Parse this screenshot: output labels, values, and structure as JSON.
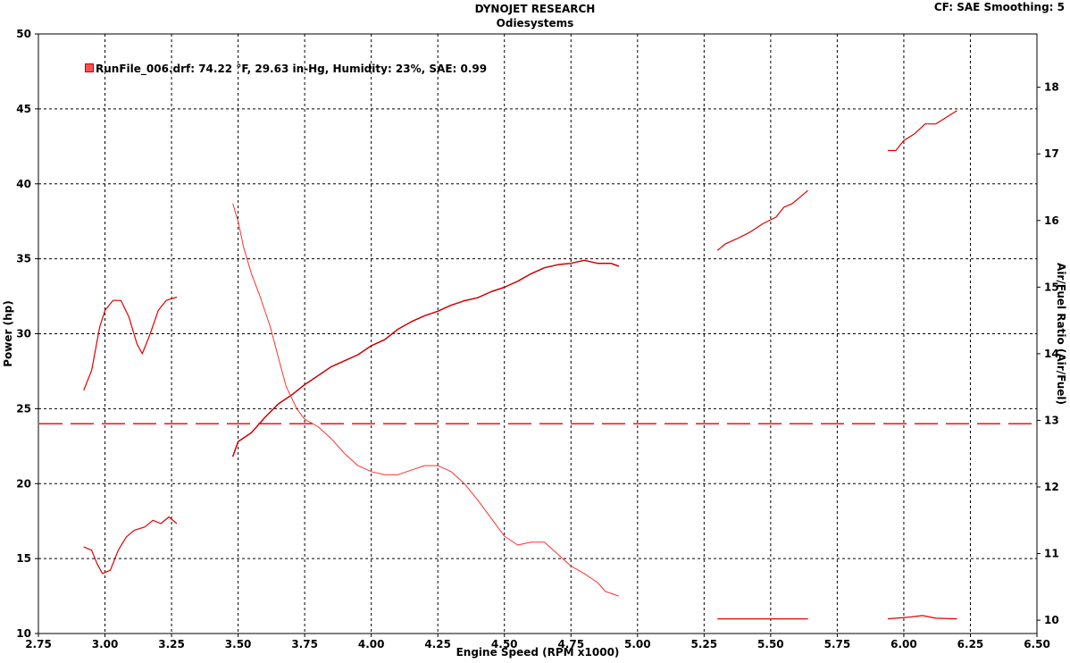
{
  "header": {
    "title": "DYNOJET RESEARCH",
    "subtitle": "Odiesystems",
    "settings": "CF: SAE  Smoothing: 5"
  },
  "legend": {
    "label": "RunFile_006.drf: 74.22 °F, 29.63 in-Hg, Humidity: 23%, SAE: 0.99",
    "color": "#ff0000"
  },
  "chart_data": {
    "type": "line",
    "title": "DYNOJET RESEARCH",
    "subtitle": "Odiesystems",
    "xlabel": "Engine Speed (RPM x1000)",
    "ylabel": "Power (hp)",
    "y2label": "Air/Fuel Ratio (Air/Fuel)",
    "xlim": [
      2.75,
      6.5
    ],
    "ylim": [
      10,
      50
    ],
    "y2lim": [
      9.8,
      18.8
    ],
    "xticks": [
      "2.75",
      "3.00",
      "3.25",
      "3.50",
      "3.75",
      "4.00",
      "4.25",
      "4.50",
      "4.75",
      "5.00",
      "5.25",
      "5.50",
      "5.75",
      "6.00",
      "6.25",
      "6.50"
    ],
    "yticks": [
      "10",
      "15",
      "20",
      "25",
      "30",
      "35",
      "40",
      "45",
      "50"
    ],
    "y2ticks": [
      "10",
      "11",
      "12",
      "13",
      "14",
      "15",
      "16",
      "17",
      "18"
    ],
    "grid": true,
    "reference_line": {
      "axis": "y2",
      "value": 12.95,
      "style": "dashed"
    },
    "series": [
      {
        "axis": "y",
        "style": "power",
        "segments": [
          [
            [
              3.48,
              21.8
            ],
            [
              3.5,
              22.8
            ],
            [
              3.55,
              23.4
            ],
            [
              3.6,
              24.4
            ],
            [
              3.65,
              25.3
            ],
            [
              3.7,
              25.9
            ],
            [
              3.75,
              26.6
            ],
            [
              3.8,
              27.2
            ],
            [
              3.85,
              27.8
            ],
            [
              3.9,
              28.2
            ],
            [
              3.95,
              28.6
            ],
            [
              4.0,
              29.2
            ],
            [
              4.05,
              29.6
            ],
            [
              4.1,
              30.3
            ],
            [
              4.15,
              30.8
            ],
            [
              4.2,
              31.2
            ],
            [
              4.25,
              31.5
            ],
            [
              4.3,
              31.9
            ],
            [
              4.35,
              32.2
            ],
            [
              4.4,
              32.4
            ],
            [
              4.45,
              32.8
            ],
            [
              4.5,
              33.1
            ],
            [
              4.55,
              33.5
            ],
            [
              4.6,
              34.0
            ],
            [
              4.65,
              34.4
            ],
            [
              4.7,
              34.6
            ],
            [
              4.75,
              34.7
            ],
            [
              4.8,
              34.9
            ],
            [
              4.85,
              34.7
            ],
            [
              4.9,
              34.7
            ],
            [
              4.93,
              34.5
            ]
          ]
        ]
      },
      {
        "axis": "y",
        "style": "torque",
        "segments": [
          [
            [
              3.48,
              38.7
            ],
            [
              3.5,
              37.5
            ],
            [
              3.52,
              35.8
            ],
            [
              3.55,
              34.0
            ],
            [
              3.58,
              32.6
            ],
            [
              3.62,
              30.5
            ],
            [
              3.65,
              28.5
            ],
            [
              3.68,
              26.5
            ],
            [
              3.72,
              25.0
            ],
            [
              3.75,
              24.3
            ],
            [
              3.8,
              23.8
            ],
            [
              3.85,
              23.0
            ],
            [
              3.9,
              22.0
            ],
            [
              3.95,
              21.2
            ],
            [
              4.0,
              20.8
            ],
            [
              4.05,
              20.6
            ],
            [
              4.1,
              20.6
            ],
            [
              4.15,
              20.9
            ],
            [
              4.2,
              21.2
            ],
            [
              4.25,
              21.2
            ],
            [
              4.3,
              20.8
            ],
            [
              4.35,
              20.0
            ],
            [
              4.4,
              18.9
            ],
            [
              4.45,
              17.7
            ],
            [
              4.5,
              16.5
            ],
            [
              4.55,
              15.9
            ],
            [
              4.6,
              16.1
            ],
            [
              4.65,
              16.1
            ],
            [
              4.7,
              15.3
            ],
            [
              4.75,
              14.5
            ],
            [
              4.8,
              14.0
            ],
            [
              4.85,
              13.4
            ],
            [
              4.88,
              12.8
            ],
            [
              4.93,
              12.5
            ]
          ]
        ]
      },
      {
        "axis": "y2",
        "style": "afr",
        "segments": [
          [
            [
              2.92,
              13.45
            ],
            [
              2.95,
              13.75
            ],
            [
              2.98,
              14.4
            ],
            [
              3.0,
              14.65
            ],
            [
              3.03,
              14.8
            ],
            [
              3.06,
              14.8
            ],
            [
              3.09,
              14.55
            ],
            [
              3.12,
              14.15
            ],
            [
              3.14,
              14.0
            ],
            [
              3.17,
              14.3
            ],
            [
              3.2,
              14.65
            ],
            [
              3.23,
              14.8
            ],
            [
              3.27,
              14.85
            ]
          ],
          [
            [
              2.92,
              11.1
            ],
            [
              2.95,
              11.05
            ],
            [
              2.97,
              10.85
            ],
            [
              2.99,
              10.7
            ],
            [
              3.02,
              10.75
            ],
            [
              3.05,
              11.05
            ],
            [
              3.08,
              11.25
            ],
            [
              3.11,
              11.35
            ],
            [
              3.15,
              11.4
            ],
            [
              3.18,
              11.5
            ],
            [
              3.21,
              11.45
            ],
            [
              3.24,
              11.55
            ],
            [
              3.27,
              11.45
            ]
          ],
          [
            [
              5.3,
              15.55
            ],
            [
              5.33,
              15.65
            ],
            [
              5.37,
              15.72
            ],
            [
              5.42,
              15.82
            ],
            [
              5.47,
              15.95
            ],
            [
              5.52,
              16.05
            ],
            [
              5.55,
              16.2
            ],
            [
              5.58,
              16.25
            ],
            [
              5.61,
              16.35
            ],
            [
              5.64,
              16.45
            ]
          ],
          [
            [
              5.94,
              17.05
            ],
            [
              5.97,
              17.05
            ],
            [
              6.0,
              17.2
            ],
            [
              6.04,
              17.3
            ],
            [
              6.08,
              17.45
            ],
            [
              6.12,
              17.45
            ],
            [
              6.16,
              17.55
            ],
            [
              6.2,
              17.65
            ]
          ],
          [
            [
              5.3,
              10.02
            ],
            [
              5.64,
              10.02
            ]
          ],
          [
            [
              5.94,
              10.02
            ],
            [
              6.03,
              10.05
            ],
            [
              6.07,
              10.07
            ],
            [
              6.12,
              10.03
            ],
            [
              6.2,
              10.02
            ]
          ]
        ]
      }
    ]
  }
}
